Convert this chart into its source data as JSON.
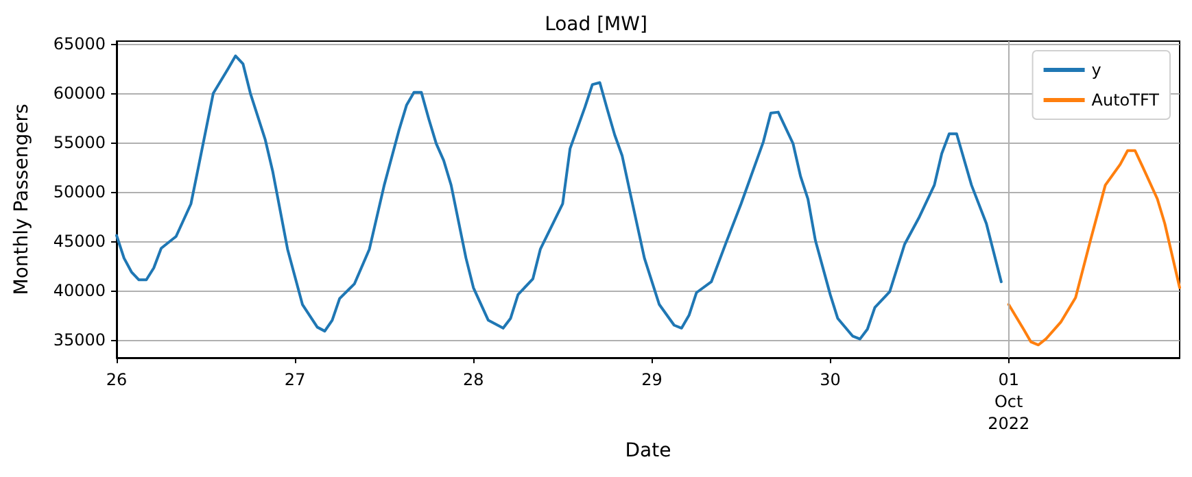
{
  "chart_data": {
    "type": "line",
    "title": "Load [MW]",
    "xlabel": "Date",
    "ylabel": "Monthly Passengers",
    "xlim": [
      "2022-09-26T00:00",
      "2022-10-01T23:00"
    ],
    "xticks": [
      {
        "value": "2022-09-26T00:00",
        "label": "26"
      },
      {
        "value": "2022-09-27T00:00",
        "label": "27"
      },
      {
        "value": "2022-09-28T00:00",
        "label": "28"
      },
      {
        "value": "2022-09-29T00:00",
        "label": "29"
      },
      {
        "value": "2022-09-30T00:00",
        "label": "30"
      },
      {
        "value": "2022-10-01T00:00",
        "label": "01\nOct\n2022"
      }
    ],
    "ylim": [
      33200,
      65300
    ],
    "yticks": [
      35000,
      40000,
      45000,
      50000,
      55000,
      60000,
      65000
    ],
    "grid": "y",
    "legend": "top right",
    "line_style": "solid",
    "marker": "none",
    "ref_lines": [
      {
        "axis": "x",
        "value": "2022-10-01T00:00",
        "color": "#b0b0b0",
        "line_style": "solid"
      }
    ],
    "series": [
      {
        "name": "y",
        "color": "#1f77b4",
        "x": [
          "2022-09-26T00:00",
          "2022-09-26T01:00",
          "2022-09-26T02:00",
          "2022-09-26T03:00",
          "2022-09-26T04:00",
          "2022-09-26T05:00",
          "2022-09-26T06:00",
          "2022-09-26T08:00",
          "2022-09-26T10:00",
          "2022-09-26T11:00",
          "2022-09-26T13:00",
          "2022-09-26T15:00",
          "2022-09-26T16:00",
          "2022-09-26T17:00",
          "2022-09-26T18:00",
          "2022-09-26T20:00",
          "2022-09-26T21:00",
          "2022-09-26T23:00",
          "2022-09-27T01:00",
          "2022-09-27T03:00",
          "2022-09-27T04:00",
          "2022-09-27T05:00",
          "2022-09-27T06:00",
          "2022-09-27T08:00",
          "2022-09-27T10:00",
          "2022-09-27T12:00",
          "2022-09-27T14:00",
          "2022-09-27T15:00",
          "2022-09-27T16:00",
          "2022-09-27T17:00",
          "2022-09-27T18:00",
          "2022-09-27T19:00",
          "2022-09-27T20:00",
          "2022-09-27T21:00",
          "2022-09-27T23:00",
          "2022-09-28T00:00",
          "2022-09-28T02:00",
          "2022-09-28T04:00",
          "2022-09-28T05:00",
          "2022-09-28T06:00",
          "2022-09-28T08:00",
          "2022-09-28T09:00",
          "2022-09-28T12:00",
          "2022-09-28T13:00",
          "2022-09-28T15:00",
          "2022-09-28T16:00",
          "2022-09-28T17:00",
          "2022-09-28T18:00",
          "2022-09-28T19:00",
          "2022-09-28T20:00",
          "2022-09-28T21:00",
          "2022-09-28T23:00",
          "2022-09-29T01:00",
          "2022-09-29T03:00",
          "2022-09-29T04:00",
          "2022-09-29T05:00",
          "2022-09-29T06:00",
          "2022-09-29T08:00",
          "2022-09-29T10:00",
          "2022-09-29T12:00",
          "2022-09-29T15:00",
          "2022-09-29T16:00",
          "2022-09-29T17:00",
          "2022-09-29T19:00",
          "2022-09-29T20:00",
          "2022-09-29T21:00",
          "2022-09-29T22:00",
          "2022-09-30T00:00",
          "2022-09-30T01:00",
          "2022-09-30T03:00",
          "2022-09-30T04:00",
          "2022-09-30T05:00",
          "2022-09-30T06:00",
          "2022-09-30T08:00",
          "2022-09-30T10:00",
          "2022-09-30T12:00",
          "2022-09-30T14:00",
          "2022-09-30T15:00",
          "2022-09-30T16:00",
          "2022-09-30T17:00",
          "2022-09-30T19:00",
          "2022-09-30T21:00",
          "2022-09-30T23:00"
        ],
        "values": [
          45600,
          43300,
          41900,
          41100,
          41100,
          42300,
          44300,
          45500,
          48800,
          52500,
          60000,
          62500,
          63800,
          63000,
          60000,
          55300,
          52100,
          44200,
          38600,
          36300,
          35900,
          37000,
          39200,
          40700,
          44200,
          50700,
          56300,
          58800,
          60100,
          60100,
          57400,
          54900,
          53200,
          50700,
          43300,
          40300,
          37000,
          36200,
          37200,
          39600,
          41200,
          44200,
          48800,
          54400,
          58600,
          60900,
          61100,
          58400,
          55800,
          53700,
          50200,
          43300,
          38600,
          36500,
          36200,
          37500,
          39800,
          40900,
          44900,
          48800,
          55100,
          58000,
          58100,
          54900,
          51600,
          49300,
          45100,
          39600,
          37200,
          35400,
          35100,
          36100,
          38300,
          39900,
          44700,
          47500,
          50700,
          53900,
          55900,
          55900,
          50700,
          46800,
          40900
        ]
      },
      {
        "name": "AutoTFT",
        "color": "#ff7f0e",
        "x": [
          "2022-10-01T00:00",
          "2022-10-01T02:00",
          "2022-10-01T03:00",
          "2022-10-01T04:00",
          "2022-10-01T05:00",
          "2022-10-01T07:00",
          "2022-10-01T09:00",
          "2022-10-01T11:00",
          "2022-10-01T13:00",
          "2022-10-01T15:00",
          "2022-10-01T16:00",
          "2022-10-01T17:00",
          "2022-10-01T18:00",
          "2022-10-01T20:00",
          "2022-10-01T21:00",
          "2022-10-01T23:00"
        ],
        "values": [
          38600,
          36100,
          34800,
          34500,
          35100,
          36800,
          39300,
          45100,
          50700,
          52800,
          54200,
          54200,
          52600,
          49300,
          46800,
          40300
        ]
      }
    ]
  }
}
